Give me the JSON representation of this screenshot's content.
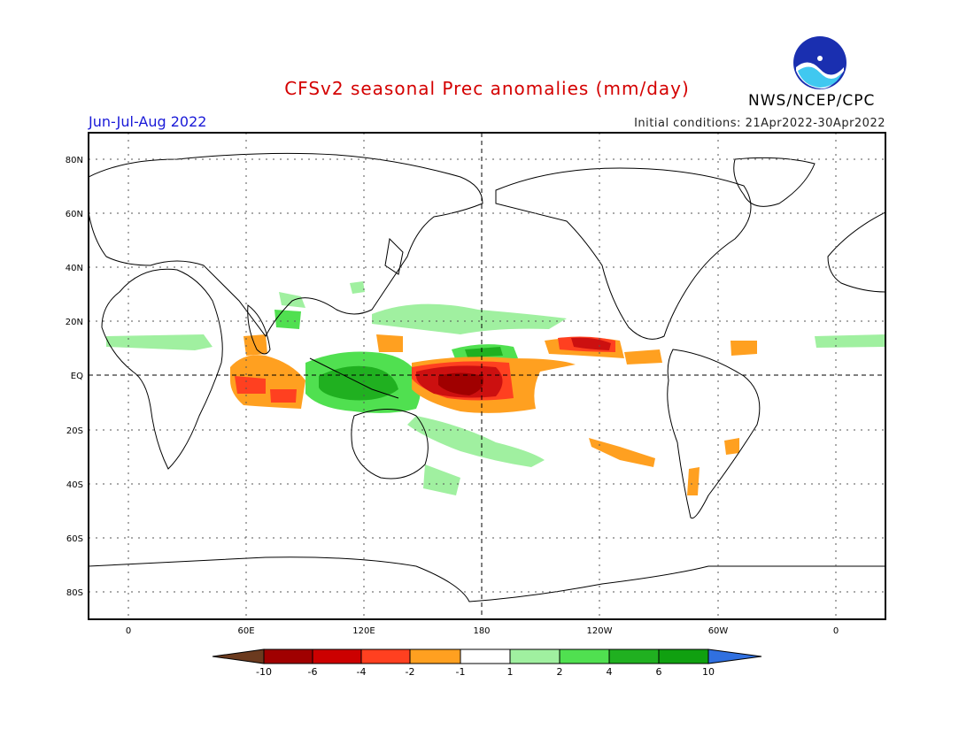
{
  "title": "CFSv2 seasonal Prec anomalies (mm/day)",
  "season": "Jun-Jul-Aug 2022",
  "initial_conditions": "Initial conditions: 21Apr2022-30Apr2022",
  "agency": "NWS/NCEP/CPC",
  "logo_text": "NOAA",
  "map": {
    "lat_labels": [
      "80N",
      "60N",
      "40N",
      "20N",
      "EQ",
      "20S",
      "40S",
      "60S",
      "80S"
    ],
    "lat_values": [
      80,
      60,
      40,
      20,
      0,
      -20,
      -40,
      -60,
      -80
    ],
    "lon_labels": [
      "0",
      "60E",
      "120E",
      "180",
      "120W",
      "60W",
      "0"
    ],
    "lon_values": [
      0,
      60,
      120,
      180,
      240,
      300,
      360
    ]
  },
  "colorbar": {
    "labels": [
      "-10",
      "-6",
      "-4",
      "-2",
      "-1",
      "1",
      "2",
      "4",
      "6",
      "10"
    ],
    "colors": [
      "#6b3a1e",
      "#a00000",
      "#cc0000",
      "#ff4020",
      "#ffa020",
      "#ffffff",
      "#a0f0a0",
      "#50e050",
      "#20b020",
      "#10a010",
      "#3070e0"
    ]
  },
  "colors": {
    "dry_extreme": "#a00000",
    "dry_strong": "#cc1010",
    "dry_moderate": "#ff4020",
    "dry_light": "#ffa020",
    "wet_light": "#a0f0a0",
    "wet_moderate": "#50e050",
    "wet_strong": "#20b020",
    "wet_extreme": "#3070e0"
  }
}
